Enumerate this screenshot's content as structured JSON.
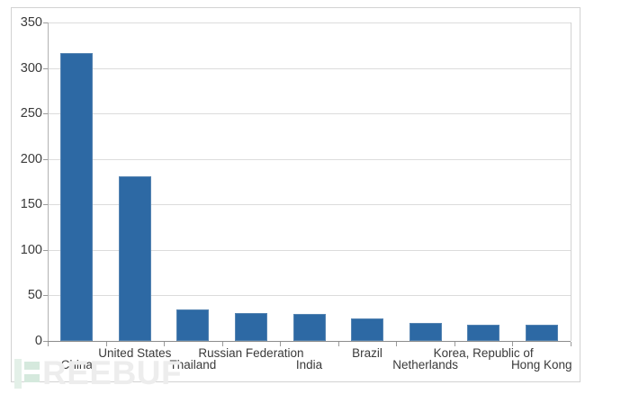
{
  "chart_data": {
    "type": "bar",
    "title": "",
    "xlabel": "",
    "ylabel": "",
    "categories": [
      "China",
      "United States",
      "Thailand",
      "Russian Federation",
      "India",
      "Brazil",
      "Netherlands",
      "Korea, Republic of",
      "Hong Kong"
    ],
    "values": [
      316,
      181,
      35,
      31,
      30,
      25,
      20,
      18,
      18
    ],
    "ylim": [
      0,
      350
    ],
    "yticks": [
      0,
      50,
      100,
      150,
      200,
      250,
      300,
      350
    ],
    "grid": true,
    "legend": null,
    "x_label_rows": {
      "top_row_indices": [
        1,
        3,
        5,
        7
      ],
      "bottom_row_indices": [
        0,
        2,
        4,
        6,
        8
      ]
    }
  },
  "watermark": {
    "text": "REEBUF",
    "logo": "freebuf-f-logo"
  },
  "colors": {
    "bar": "#2d69a4",
    "bar_border": "#5584b2",
    "grid": "#dcdcdc",
    "axis": "#b2b2b2",
    "baseline": "#8c8c8c",
    "tick": "#9a9a9a",
    "label": "#3a3a3a",
    "frame": "#d2d2d2",
    "watermark_text": "#ededed",
    "watermark_green": "#d5e9dd",
    "background": "#ffffff"
  }
}
